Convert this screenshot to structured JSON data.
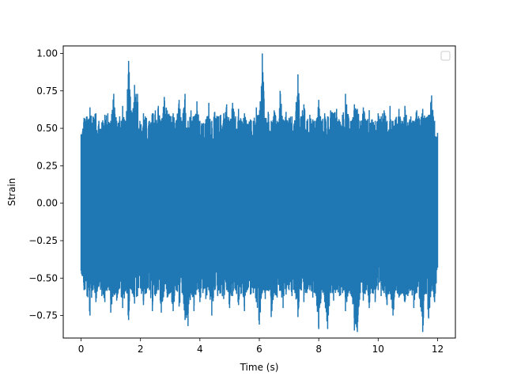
{
  "chart_data": {
    "type": "line",
    "title": "",
    "xlabel": "Time (s)",
    "ylabel": "Strain",
    "xlim": [
      -0.6,
      12.6
    ],
    "ylim": [
      -0.9,
      1.05
    ],
    "xticks": [
      0,
      2,
      4,
      6,
      8,
      10,
      12
    ],
    "xtick_labels": [
      "0",
      "2",
      "4",
      "6",
      "8",
      "10",
      "12"
    ],
    "yticks": [
      -0.75,
      -0.5,
      -0.25,
      0.0,
      0.25,
      0.5,
      0.75,
      1.0
    ],
    "ytick_labels": [
      "−0.75",
      "−0.50",
      "−0.25",
      "0.00",
      "0.25",
      "0.50",
      "0.75",
      "1.00"
    ],
    "grid": false,
    "legend": {
      "location": "upper right",
      "entries": []
    },
    "series_color": "#1f77b4",
    "series": [
      {
        "x_range": [
          0,
          12
        ],
        "envelope_max": [
          [
            0.0,
            0.46
          ],
          [
            0.1,
            0.57
          ],
          [
            0.2,
            0.58
          ],
          [
            0.3,
            0.64
          ],
          [
            0.4,
            0.58
          ],
          [
            0.5,
            0.6
          ],
          [
            0.6,
            0.55
          ],
          [
            0.7,
            0.54
          ],
          [
            0.8,
            0.59
          ],
          [
            0.9,
            0.6
          ],
          [
            1.0,
            0.55
          ],
          [
            1.1,
            0.73
          ],
          [
            1.2,
            0.55
          ],
          [
            1.3,
            0.58
          ],
          [
            1.4,
            0.65
          ],
          [
            1.5,
            0.55
          ],
          [
            1.6,
            0.95
          ],
          [
            1.7,
            0.58
          ],
          [
            1.8,
            0.79
          ],
          [
            1.9,
            0.73
          ],
          [
            2.0,
            0.52
          ],
          [
            2.1,
            0.6
          ],
          [
            2.2,
            0.57
          ],
          [
            2.3,
            0.55
          ],
          [
            2.4,
            0.6
          ],
          [
            2.5,
            0.62
          ],
          [
            2.6,
            0.65
          ],
          [
            2.7,
            0.55
          ],
          [
            2.8,
            0.71
          ],
          [
            2.9,
            0.62
          ],
          [
            3.0,
            0.58
          ],
          [
            3.1,
            0.6
          ],
          [
            3.2,
            0.55
          ],
          [
            3.3,
            0.69
          ],
          [
            3.4,
            0.55
          ],
          [
            3.5,
            0.73
          ],
          [
            3.6,
            0.55
          ],
          [
            3.7,
            0.62
          ],
          [
            3.8,
            0.58
          ],
          [
            3.9,
            0.68
          ],
          [
            4.0,
            0.55
          ],
          [
            4.1,
            0.53
          ],
          [
            4.2,
            0.56
          ],
          [
            4.3,
            0.67
          ],
          [
            4.4,
            0.55
          ],
          [
            4.5,
            0.61
          ],
          [
            4.6,
            0.58
          ],
          [
            4.7,
            0.59
          ],
          [
            4.8,
            0.6
          ],
          [
            4.9,
            0.66
          ],
          [
            5.0,
            0.55
          ],
          [
            5.1,
            0.67
          ],
          [
            5.2,
            0.58
          ],
          [
            5.3,
            0.63
          ],
          [
            5.4,
            0.55
          ],
          [
            5.5,
            0.6
          ],
          [
            5.6,
            0.53
          ],
          [
            5.7,
            0.56
          ],
          [
            5.8,
            0.55
          ],
          [
            5.9,
            0.64
          ],
          [
            6.0,
            0.59
          ],
          [
            6.1,
            1.0
          ],
          [
            6.2,
            0.57
          ],
          [
            6.3,
            0.61
          ],
          [
            6.4,
            0.55
          ],
          [
            6.5,
            0.62
          ],
          [
            6.6,
            0.55
          ],
          [
            6.7,
            0.75
          ],
          [
            6.8,
            0.55
          ],
          [
            6.9,
            0.61
          ],
          [
            7.0,
            0.57
          ],
          [
            7.1,
            0.58
          ],
          [
            7.2,
            0.55
          ],
          [
            7.3,
            0.86
          ],
          [
            7.4,
            0.58
          ],
          [
            7.5,
            0.66
          ],
          [
            7.6,
            0.55
          ],
          [
            7.7,
            0.59
          ],
          [
            7.8,
            0.56
          ],
          [
            7.9,
            0.55
          ],
          [
            8.0,
            0.69
          ],
          [
            8.1,
            0.55
          ],
          [
            8.2,
            0.6
          ],
          [
            8.3,
            0.58
          ],
          [
            8.4,
            0.62
          ],
          [
            8.5,
            0.6
          ],
          [
            8.6,
            0.63
          ],
          [
            8.7,
            0.55
          ],
          [
            8.8,
            0.59
          ],
          [
            8.9,
            0.73
          ],
          [
            9.0,
            0.58
          ],
          [
            9.1,
            0.55
          ],
          [
            9.2,
            0.66
          ],
          [
            9.3,
            0.63
          ],
          [
            9.4,
            0.55
          ],
          [
            9.5,
            0.64
          ],
          [
            9.6,
            0.55
          ],
          [
            9.7,
            0.62
          ],
          [
            9.8,
            0.56
          ],
          [
            9.9,
            0.55
          ],
          [
            10.0,
            0.6
          ],
          [
            10.1,
            0.58
          ],
          [
            10.2,
            0.62
          ],
          [
            10.3,
            0.55
          ],
          [
            10.4,
            0.65
          ],
          [
            10.5,
            0.55
          ],
          [
            10.6,
            0.57
          ],
          [
            10.7,
            0.63
          ],
          [
            10.8,
            0.55
          ],
          [
            10.9,
            0.65
          ],
          [
            11.0,
            0.54
          ],
          [
            11.1,
            0.58
          ],
          [
            11.2,
            0.55
          ],
          [
            11.3,
            0.62
          ],
          [
            11.4,
            0.56
          ],
          [
            11.5,
            0.63
          ],
          [
            11.6,
            0.57
          ],
          [
            11.7,
            0.59
          ],
          [
            11.8,
            0.72
          ],
          [
            11.9,
            0.55
          ],
          [
            12.0,
            0.47
          ]
        ],
        "envelope_min": [
          [
            0.0,
            -0.45
          ],
          [
            0.1,
            -0.58
          ],
          [
            0.2,
            -0.62
          ],
          [
            0.3,
            -0.75
          ],
          [
            0.4,
            -0.58
          ],
          [
            0.5,
            -0.66
          ],
          [
            0.6,
            -0.55
          ],
          [
            0.7,
            -0.62
          ],
          [
            0.8,
            -0.66
          ],
          [
            0.9,
            -0.56
          ],
          [
            1.0,
            -0.73
          ],
          [
            1.1,
            -0.6
          ],
          [
            1.2,
            -0.65
          ],
          [
            1.3,
            -0.57
          ],
          [
            1.4,
            -0.7
          ],
          [
            1.5,
            -0.58
          ],
          [
            1.6,
            -0.78
          ],
          [
            1.7,
            -0.58
          ],
          [
            1.8,
            -0.67
          ],
          [
            1.9,
            -0.62
          ],
          [
            2.0,
            -0.57
          ],
          [
            2.1,
            -0.68
          ],
          [
            2.2,
            -0.6
          ],
          [
            2.3,
            -0.58
          ],
          [
            2.4,
            -0.72
          ],
          [
            2.5,
            -0.62
          ],
          [
            2.6,
            -0.58
          ],
          [
            2.7,
            -0.73
          ],
          [
            2.8,
            -0.59
          ],
          [
            2.9,
            -0.63
          ],
          [
            3.0,
            -0.6
          ],
          [
            3.1,
            -0.72
          ],
          [
            3.2,
            -0.58
          ],
          [
            3.3,
            -0.69
          ],
          [
            3.4,
            -0.6
          ],
          [
            3.5,
            -0.78
          ],
          [
            3.6,
            -0.82
          ],
          [
            3.7,
            -0.6
          ],
          [
            3.8,
            -0.72
          ],
          [
            3.9,
            -0.58
          ],
          [
            4.0,
            -0.66
          ],
          [
            4.1,
            -0.6
          ],
          [
            4.2,
            -0.64
          ],
          [
            4.3,
            -0.58
          ],
          [
            4.4,
            -0.75
          ],
          [
            4.5,
            -0.58
          ],
          [
            4.6,
            -0.62
          ],
          [
            4.7,
            -0.6
          ],
          [
            4.8,
            -0.64
          ],
          [
            4.9,
            -0.58
          ],
          [
            5.0,
            -0.7
          ],
          [
            5.1,
            -0.62
          ],
          [
            5.2,
            -0.58
          ],
          [
            5.3,
            -0.68
          ],
          [
            5.4,
            -0.6
          ],
          [
            5.5,
            -0.72
          ],
          [
            5.6,
            -0.58
          ],
          [
            5.7,
            -0.61
          ],
          [
            5.8,
            -0.6
          ],
          [
            5.9,
            -0.66
          ],
          [
            6.0,
            -0.81
          ],
          [
            6.1,
            -0.6
          ],
          [
            6.2,
            -0.64
          ],
          [
            6.3,
            -0.58
          ],
          [
            6.4,
            -0.76
          ],
          [
            6.5,
            -0.6
          ],
          [
            6.6,
            -0.63
          ],
          [
            6.7,
            -0.58
          ],
          [
            6.8,
            -0.7
          ],
          [
            6.9,
            -0.61
          ],
          [
            7.0,
            -0.58
          ],
          [
            7.1,
            -0.62
          ],
          [
            7.2,
            -0.6
          ],
          [
            7.3,
            -0.76
          ],
          [
            7.4,
            -0.58
          ],
          [
            7.5,
            -0.66
          ],
          [
            7.6,
            -0.6
          ],
          [
            7.7,
            -0.58
          ],
          [
            7.8,
            -0.63
          ],
          [
            7.9,
            -0.6
          ],
          [
            8.0,
            -0.84
          ],
          [
            8.1,
            -0.58
          ],
          [
            8.2,
            -0.66
          ],
          [
            8.3,
            -0.84
          ],
          [
            8.4,
            -0.6
          ],
          [
            8.5,
            -0.65
          ],
          [
            8.6,
            -0.58
          ],
          [
            8.7,
            -0.62
          ],
          [
            8.8,
            -0.6
          ],
          [
            8.9,
            -0.72
          ],
          [
            9.0,
            -0.6
          ],
          [
            9.1,
            -0.62
          ],
          [
            9.2,
            -0.85
          ],
          [
            9.3,
            -0.86
          ],
          [
            9.4,
            -0.6
          ],
          [
            9.5,
            -0.65
          ],
          [
            9.6,
            -0.58
          ],
          [
            9.7,
            -0.7
          ],
          [
            9.8,
            -0.6
          ],
          [
            9.9,
            -0.66
          ],
          [
            10.0,
            -0.58
          ],
          [
            10.1,
            -0.62
          ],
          [
            10.2,
            -0.6
          ],
          [
            10.3,
            -0.68
          ],
          [
            10.4,
            -0.6
          ],
          [
            10.5,
            -0.75
          ],
          [
            10.6,
            -0.58
          ],
          [
            10.7,
            -0.63
          ],
          [
            10.8,
            -0.6
          ],
          [
            10.9,
            -0.66
          ],
          [
            11.0,
            -0.62
          ],
          [
            11.1,
            -0.58
          ],
          [
            11.2,
            -0.7
          ],
          [
            11.3,
            -0.6
          ],
          [
            11.4,
            -0.64
          ],
          [
            11.5,
            -0.86
          ],
          [
            11.6,
            -0.6
          ],
          [
            11.7,
            -0.77
          ],
          [
            11.8,
            -0.58
          ],
          [
            11.9,
            -0.66
          ],
          [
            12.0,
            -0.43
          ]
        ]
      }
    ]
  }
}
